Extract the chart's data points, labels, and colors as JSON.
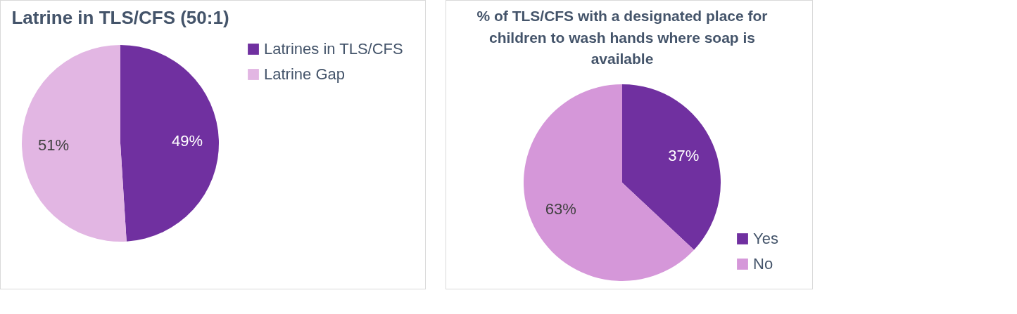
{
  "chart_data": [
    {
      "type": "pie",
      "title": "Latrine in TLS/CFS (50:1)",
      "categories": [
        "Latrines in TLS/CFS",
        "Latrine Gap"
      ],
      "values": [
        49,
        51
      ],
      "colors": [
        "#7030a0",
        "#e2b6e3"
      ],
      "value_labels": [
        "49%",
        "51%"
      ],
      "legend": "right"
    },
    {
      "type": "pie",
      "title": "% of TLS/CFS with a designated place for children to wash hands where soap is available",
      "categories": [
        "Yes",
        "No"
      ],
      "values": [
        37,
        63
      ],
      "colors": [
        "#7030a0",
        "#d597d9"
      ],
      "value_labels": [
        "37%",
        "63%"
      ],
      "legend": "bottom right"
    }
  ]
}
